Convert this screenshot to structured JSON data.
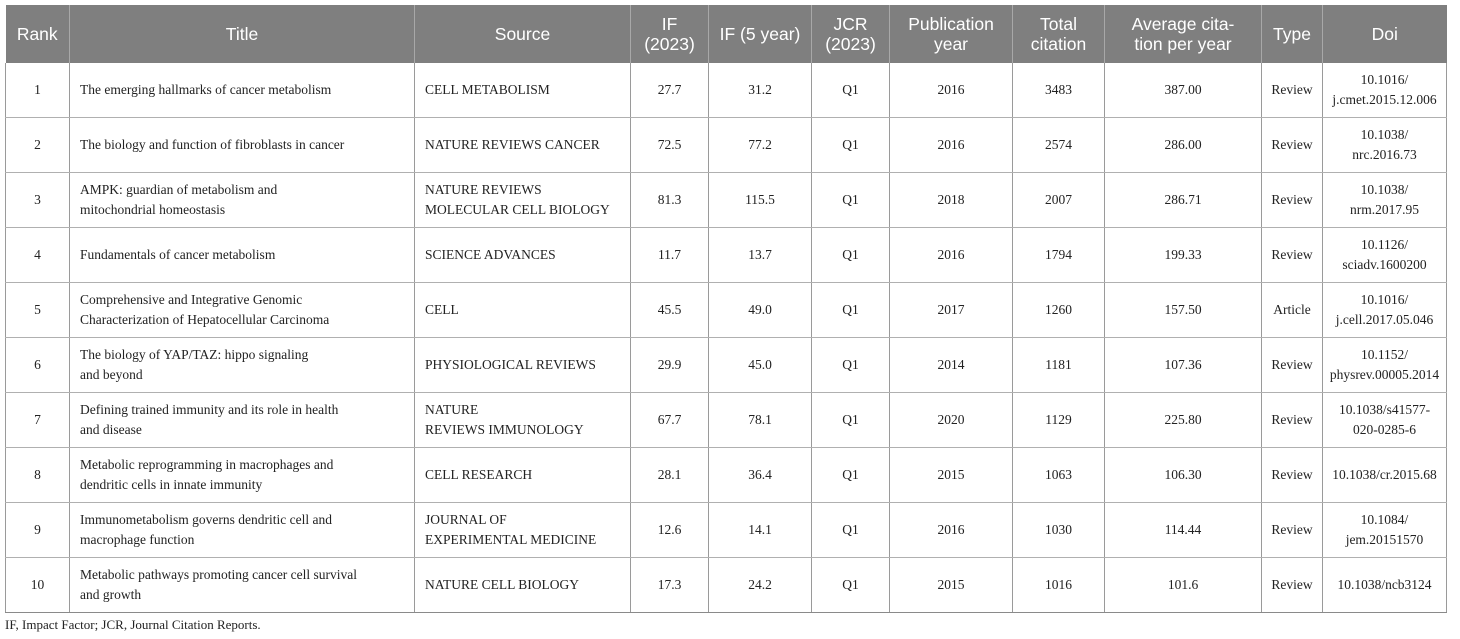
{
  "headers": {
    "rank": "Rank",
    "title": "Title",
    "source": "Source",
    "if2023_l1": "IF",
    "if2023_l2": "(2023)",
    "if5": "IF (5 year)",
    "jcr_l1": "JCR",
    "jcr_l2": "(2023)",
    "pub_l1": "Publication",
    "pub_l2": "year",
    "total_l1": "Total",
    "total_l2": "citation",
    "avg_l1": "Average cita-",
    "avg_l2": "tion per year",
    "type": "Type",
    "doi": "Doi"
  },
  "rows": [
    {
      "rank": "1",
      "title_l1": "The emerging hallmarks of cancer metabolism",
      "title_l2": "",
      "source_l1": "CELL METABOLISM",
      "source_l2": "",
      "if2023": "27.7",
      "if5": "31.2",
      "jcr": "Q1",
      "year": "2016",
      "total": "3483",
      "avg": "387.00",
      "type": "Review",
      "doi_l1": "10.1016/",
      "doi_l2": "j.cmet.2015.12.006"
    },
    {
      "rank": "2",
      "title_l1": "The biology and function of fibroblasts in cancer",
      "title_l2": "",
      "source_l1": "NATURE REVIEWS CANCER",
      "source_l2": "",
      "if2023": "72.5",
      "if5": "77.2",
      "jcr": "Q1",
      "year": "2016",
      "total": "2574",
      "avg": "286.00",
      "type": "Review",
      "doi_l1": "10.1038/",
      "doi_l2": "nrc.2016.73"
    },
    {
      "rank": "3",
      "title_l1": "AMPK: guardian of metabolism and",
      "title_l2": "mitochondrial homeostasis",
      "source_l1": "NATURE REVIEWS",
      "source_l2": "MOLECULAR CELL BIOLOGY",
      "if2023": "81.3",
      "if5": "115.5",
      "jcr": "Q1",
      "year": "2018",
      "total": "2007",
      "avg": "286.71",
      "type": "Review",
      "doi_l1": "10.1038/",
      "doi_l2": "nrm.2017.95"
    },
    {
      "rank": "4",
      "title_l1": "Fundamentals of cancer metabolism",
      "title_l2": "",
      "source_l1": "SCIENCE ADVANCES",
      "source_l2": "",
      "if2023": "11.7",
      "if5": "13.7",
      "jcr": "Q1",
      "year": "2016",
      "total": "1794",
      "avg": "199.33",
      "type": "Review",
      "doi_l1": "10.1126/",
      "doi_l2": "sciadv.1600200"
    },
    {
      "rank": "5",
      "title_l1": "Comprehensive and Integrative Genomic",
      "title_l2": "Characterization of Hepatocellular Carcinoma",
      "source_l1": "CELL",
      "source_l2": "",
      "if2023": "45.5",
      "if5": "49.0",
      "jcr": "Q1",
      "year": "2017",
      "total": "1260",
      "avg": "157.50",
      "type": "Article",
      "doi_l1": "10.1016/",
      "doi_l2": "j.cell.2017.05.046"
    },
    {
      "rank": "6",
      "title_l1": "The biology of YAP/TAZ: hippo signaling",
      "title_l2": "and beyond",
      "source_l1": "PHYSIOLOGICAL REVIEWS",
      "source_l2": "",
      "if2023": "29.9",
      "if5": "45.0",
      "jcr": "Q1",
      "year": "2014",
      "total": "1181",
      "avg": "107.36",
      "type": "Review",
      "doi_l1": "10.1152/",
      "doi_l2": "physrev.00005.2014"
    },
    {
      "rank": "7",
      "title_l1": "Defining trained immunity and its role in health",
      "title_l2": "and disease",
      "source_l1": "NATURE",
      "source_l2": "REVIEWS IMMUNOLOGY",
      "if2023": "67.7",
      "if5": "78.1",
      "jcr": "Q1",
      "year": "2020",
      "total": "1129",
      "avg": "225.80",
      "type": "Review",
      "doi_l1": "10.1038/s41577-",
      "doi_l2": "020-0285-6"
    },
    {
      "rank": "8",
      "title_l1": "Metabolic reprogramming in macrophages and",
      "title_l2": "dendritic cells in innate immunity",
      "source_l1": "CELL RESEARCH",
      "source_l2": "",
      "if2023": "28.1",
      "if5": "36.4",
      "jcr": "Q1",
      "year": "2015",
      "total": "1063",
      "avg": "106.30",
      "type": "Review",
      "doi_l1": "10.1038/cr.2015.68",
      "doi_l2": ""
    },
    {
      "rank": "9",
      "title_l1": "Immunometabolism governs dendritic cell and",
      "title_l2": "macrophage function",
      "source_l1": "JOURNAL OF",
      "source_l2": "EXPERIMENTAL MEDICINE",
      "if2023": "12.6",
      "if5": "14.1",
      "jcr": "Q1",
      "year": "2016",
      "total": "1030",
      "avg": "114.44",
      "type": "Review",
      "doi_l1": "10.1084/",
      "doi_l2": "jem.20151570"
    },
    {
      "rank": "10",
      "title_l1": "Metabolic pathways promoting cancer cell survival",
      "title_l2": "and growth",
      "source_l1": "NATURE CELL BIOLOGY",
      "source_l2": "",
      "if2023": "17.3",
      "if5": "24.2",
      "jcr": "Q1",
      "year": "2015",
      "total": "1016",
      "avg": "101.6",
      "type": "Review",
      "doi_l1": "10.1038/ncb3124",
      "doi_l2": ""
    }
  ],
  "footnote": "IF, Impact Factor; JCR, Journal Citation Reports."
}
